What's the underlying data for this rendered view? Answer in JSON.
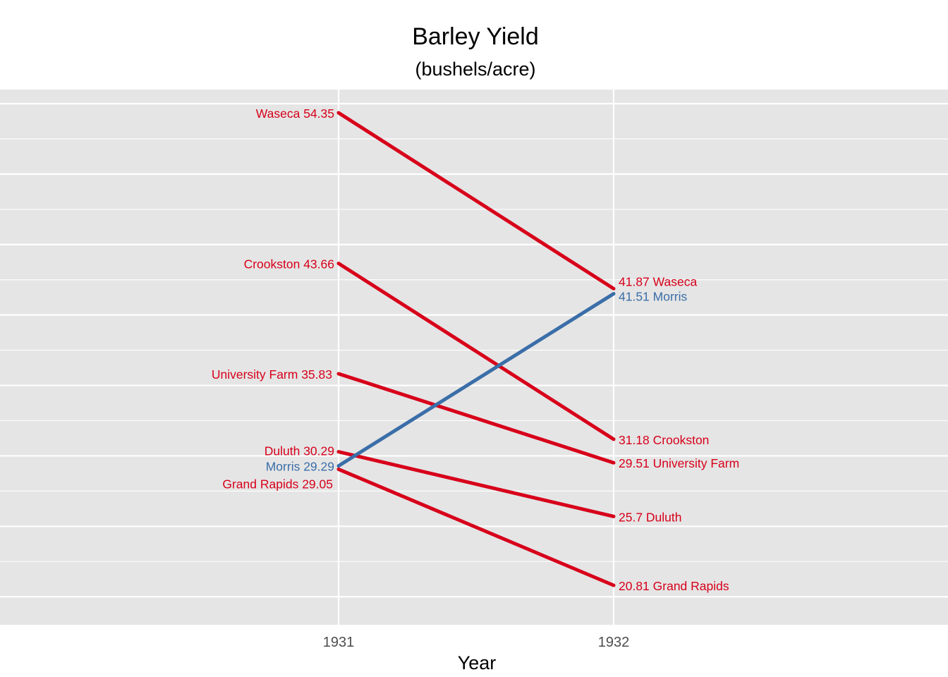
{
  "chart_data": {
    "type": "line",
    "title": "Barley Yield",
    "subtitle": "(bushels/acre)",
    "xlabel": "Year",
    "ylabel": "",
    "categories": [
      "1931",
      "1932"
    ],
    "ylim": [
      17,
      56
    ],
    "grid": true,
    "legend": "none",
    "colors": {
      "decline": "#d7001a",
      "increase": "#3a6ea8",
      "panel": "#e5e5e5",
      "grid": "#ffffff"
    },
    "series": [
      {
        "name": "Waseca",
        "values": [
          54.35,
          41.87
        ],
        "color": "#d7001a",
        "labels": [
          "Waseca 54.35",
          "41.87 Waseca"
        ]
      },
      {
        "name": "Crookston",
        "values": [
          43.66,
          31.18
        ],
        "color": "#d7001a",
        "labels": [
          "Crookston 43.66",
          "31.18 Crookston"
        ]
      },
      {
        "name": "University Farm",
        "values": [
          35.83,
          29.51
        ],
        "color": "#d7001a",
        "labels": [
          "University Farm 35.83",
          "29.51 University Farm"
        ]
      },
      {
        "name": "Duluth",
        "values": [
          30.29,
          25.7
        ],
        "color": "#d7001a",
        "labels": [
          "Duluth 30.29",
          "25.7 Duluth"
        ]
      },
      {
        "name": "Morris",
        "values": [
          29.29,
          41.51
        ],
        "color": "#3a6ea8",
        "labels": [
          "Morris 29.29",
          "41.51 Morris"
        ]
      },
      {
        "name": "Grand Rapids",
        "values": [
          29.05,
          20.81
        ],
        "color": "#d7001a",
        "labels": [
          "Grand Rapids 29.05",
          "20.81 Grand Rapids"
        ]
      }
    ]
  }
}
